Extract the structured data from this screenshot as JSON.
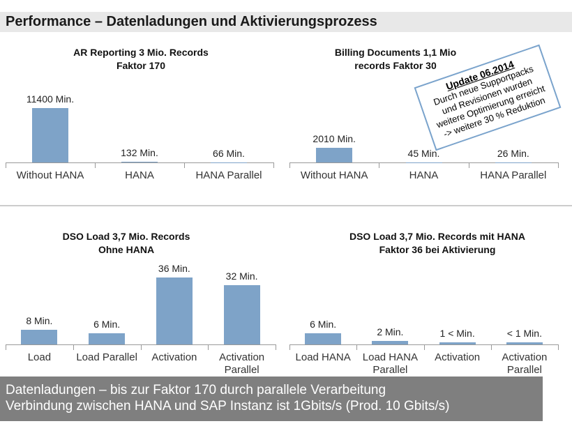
{
  "header": {
    "title": "Performance – Datenladungen und Aktivierungsprozess"
  },
  "chart_data": [
    {
      "type": "bar",
      "title": "AR Reporting 3 Mio. Records\nFaktor 170",
      "categories": [
        "Without HANA",
        "HANA",
        "HANA Parallel"
      ],
      "values": [
        11400,
        132,
        66
      ],
      "value_labels": [
        "11400 Min.",
        "132 Min.",
        "66 Min."
      ],
      "color": "#7ea3c8"
    },
    {
      "type": "bar",
      "title": "Billing Documents 1,1 Mio\nrecords Faktor 30",
      "categories": [
        "Without HANA",
        "HANA",
        "HANA Parallel"
      ],
      "values": [
        2010,
        45,
        26
      ],
      "value_labels": [
        "2010 Min.",
        "45 Min.",
        "26 Min."
      ],
      "color": "#7ea3c8"
    },
    {
      "type": "bar",
      "title": "DSO Load 3,7 Mio. Records\nOhne  HANA",
      "categories": [
        "Load",
        "Load Parallel",
        "Activation",
        "Activation Parallel"
      ],
      "values": [
        8,
        6,
        36,
        32
      ],
      "value_labels": [
        "8 Min.",
        "6 Min.",
        "36 Min.",
        "32 Min."
      ],
      "color": "#7ea3c8"
    },
    {
      "type": "bar",
      "title": "DSO Load 3,7 Mio. Records mit HANA\nFaktor 36 bei Aktivierung",
      "categories": [
        "Load  HANA",
        "Load HANA Parallel",
        "Activation",
        "Activation Parallel"
      ],
      "values": [
        6,
        2,
        1,
        1
      ],
      "value_labels": [
        "6 Min.",
        "2 Min.",
        "1 < Min.",
        "< 1 Min."
      ],
      "color": "#7ea3c8"
    }
  ],
  "callout": {
    "title": "Update 06.2014",
    "lines": [
      "Durch neue Supportpacks",
      "und Revisionen wurden",
      "weitere Optimierung erreicht",
      "-> weitere 30 % Reduktion"
    ]
  },
  "footer": {
    "lines": [
      "Datenladungen – bis zur Faktor 170  durch parallele Verarbeitung",
      "Verbindung zwischen HANA und SAP Instanz ist 1Gbits/s (Prod. 10 Gbits/s)"
    ]
  }
}
